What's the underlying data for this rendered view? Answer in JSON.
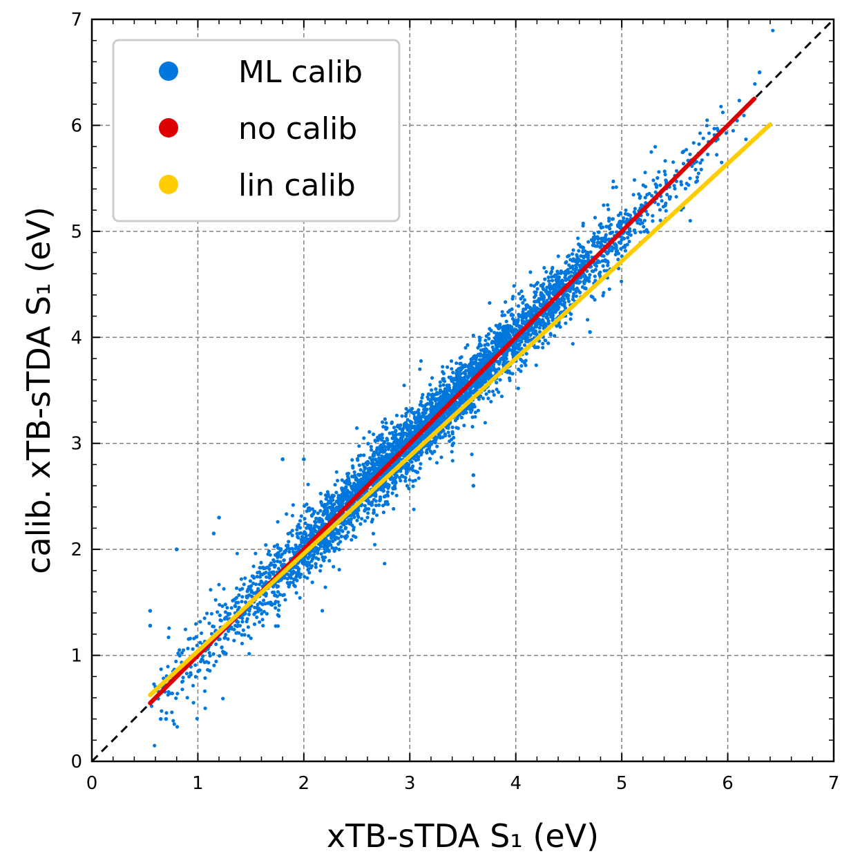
{
  "chart_data": {
    "type": "scatter",
    "xlabel": "xTB-sTDA S₁ (eV)",
    "ylabel": "calib. xTB-sTDA S₁ (eV)",
    "xlim": [
      0,
      7
    ],
    "ylim": [
      0,
      7
    ],
    "xticks": [
      "0",
      "1",
      "2",
      "3",
      "4",
      "5",
      "6",
      "7"
    ],
    "yticks": [
      "0",
      "1",
      "2",
      "3",
      "4",
      "5",
      "6",
      "7"
    ],
    "grid": true,
    "legend_position": "top-left",
    "reference_line": {
      "style": "dashed",
      "color": "#000000",
      "from": [
        0,
        0
      ],
      "to": [
        7,
        7
      ]
    },
    "series": [
      {
        "name": "ML calib",
        "color": "#0077dd",
        "x_range": [
          0.55,
          6.45
        ],
        "relation": "scattered around y = x",
        "outlier_points": [
          [
            0.55,
            1.42
          ],
          [
            0.55,
            1.28
          ],
          [
            0.65,
            0.4
          ],
          [
            0.7,
            0.4
          ],
          [
            0.8,
            2.0
          ],
          [
            1.15,
            2.15
          ],
          [
            1.2,
            2.3
          ],
          [
            1.8,
            2.85
          ],
          [
            2.0,
            2.85
          ],
          [
            3.6,
            2.7
          ],
          [
            3.6,
            2.6
          ],
          [
            6.3,
            6.5
          ],
          [
            4.7,
            4.05
          ]
        ]
      },
      {
        "name": "no calib",
        "color": "#dd0000",
        "x_range": [
          0.55,
          6.25
        ],
        "line": {
          "slope": 1.0,
          "intercept": 0.0
        }
      },
      {
        "name": "lin calib",
        "color": "#ffcc00",
        "x_range": [
          0.55,
          6.4
        ],
        "line": {
          "slope": 0.92,
          "intercept": 0.12
        }
      }
    ]
  }
}
